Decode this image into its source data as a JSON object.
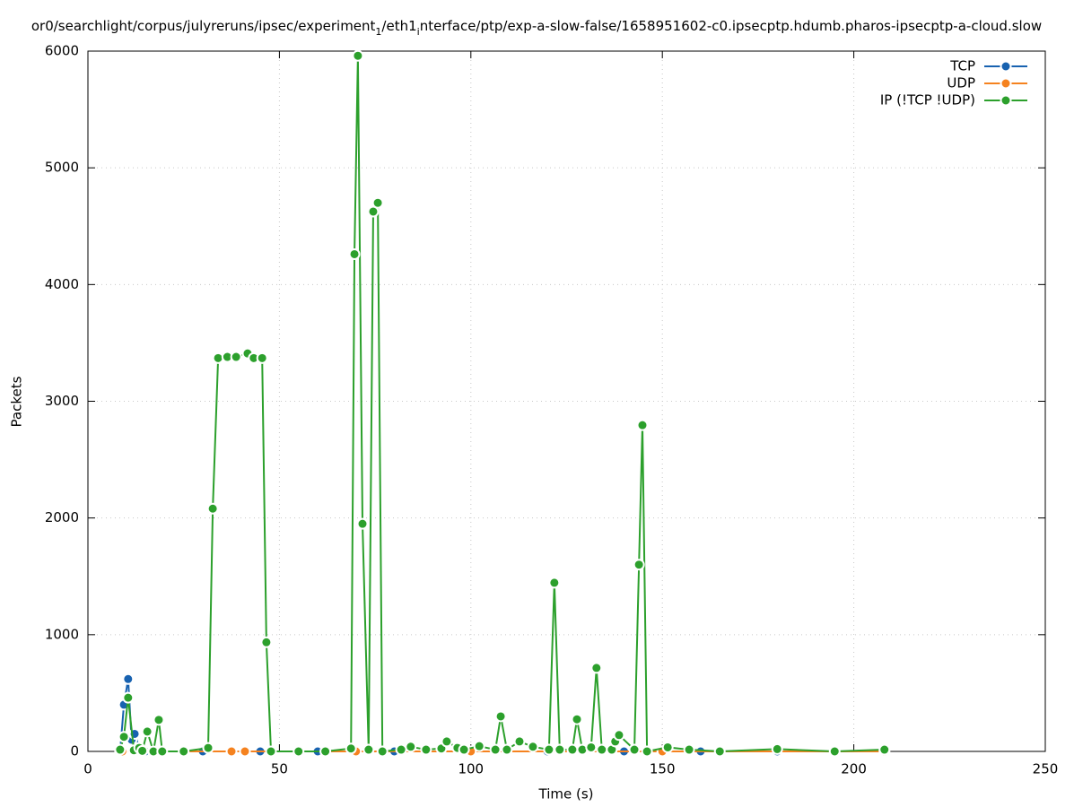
{
  "chart_data": {
    "type": "line",
    "title": [
      "or0/searchlight/corpus/julyreruns/ipsec/experiment",
      "1",
      "/eth1",
      "i",
      "nterface/ptp/exp-a-slow-false/1658951602-c0.ipsecptp.hdumb.pharos-ipsecptp-a-cloud.slow"
    ],
    "xlabel": "Time (s)",
    "ylabel": "Packets",
    "xlim": [
      0,
      250
    ],
    "xticks": [
      0,
      50,
      100,
      150,
      200,
      250
    ],
    "ylim": [
      0,
      6000
    ],
    "yticks": [
      0,
      1000,
      2000,
      3000,
      4000,
      5000,
      6000
    ],
    "grid": true,
    "legend": "top-right",
    "series": [
      {
        "name": "TCP",
        "color": "#1862b0",
        "x": [
          8.4,
          9.4,
          10.5,
          11.4,
          12.2,
          13.4,
          15,
          17,
          19,
          30,
          45,
          60,
          80,
          100,
          120,
          140,
          160,
          180,
          208
        ],
        "values": [
          0,
          400,
          620,
          100,
          150,
          30,
          0,
          0,
          0,
          0,
          0,
          0,
          0,
          0,
          0,
          0,
          0,
          0,
          0
        ]
      },
      {
        "name": "UDP",
        "color": "#f5821f",
        "x": [
          9,
          37.5,
          41,
          70,
          100,
          150,
          208
        ],
        "values": [
          0,
          0,
          0,
          0,
          0,
          0,
          0
        ]
      },
      {
        "name": "IP (!TCP  !UDP)",
        "color": "#2ca02c",
        "x": [
          8.4,
          9.4,
          10.5,
          12,
          13.4,
          14.2,
          15.5,
          17.1,
          18.5,
          19.4,
          25,
          31.4,
          32.6,
          34,
          36.4,
          38.7,
          41.7,
          43.3,
          45.5,
          46.6,
          47.8,
          55,
          62,
          68.7,
          69.6,
          70.5,
          71.7,
          73.3,
          74.5,
          75.7,
          76.9,
          81.8,
          84.3,
          88.3,
          92.3,
          93.7,
          96.5,
          98.2,
          102.2,
          106.4,
          107.8,
          109.4,
          112.7,
          116.2,
          120.4,
          121.8,
          123.2,
          126.5,
          127.7,
          129.1,
          131.4,
          132.8,
          134.2,
          136.8,
          137.7,
          138.7,
          142.7,
          143.9,
          144.8,
          146,
          151.4,
          157,
          165,
          180,
          195,
          208
        ],
        "values": [
          15,
          125,
          460,
          10,
          30,
          5,
          170,
          0,
          270,
          0,
          0,
          30,
          2080,
          3370,
          3380,
          3380,
          3410,
          3370,
          3370,
          935,
          0,
          0,
          0,
          25,
          4260,
          5960,
          1950,
          15,
          4625,
          4700,
          0,
          15,
          40,
          15,
          25,
          85,
          30,
          15,
          45,
          15,
          300,
          15,
          85,
          40,
          15,
          1445,
          15,
          15,
          275,
          15,
          35,
          715,
          15,
          15,
          85,
          140,
          15,
          1600,
          2795,
          0,
          35,
          15,
          0,
          20,
          0,
          15
        ]
      }
    ]
  }
}
